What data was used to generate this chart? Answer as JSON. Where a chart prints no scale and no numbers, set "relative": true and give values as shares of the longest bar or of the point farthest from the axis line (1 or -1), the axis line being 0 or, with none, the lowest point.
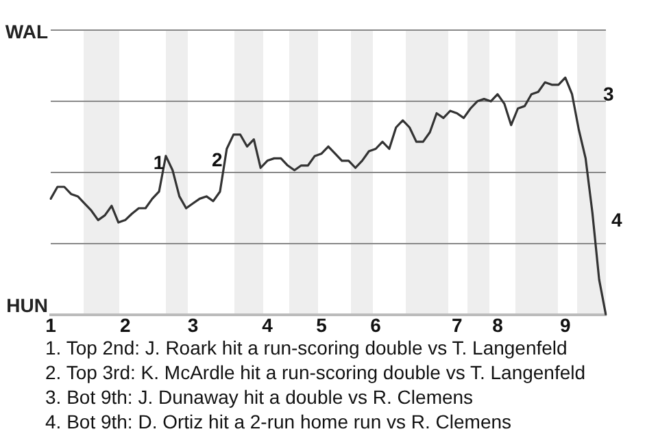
{
  "chart_data": {
    "type": "line",
    "marker": "none",
    "grid": "y",
    "legend": false,
    "line_style": "solid",
    "relative": true,
    "tick_labels": "x",
    "categories": [
      "1",
      null,
      null,
      null,
      null,
      null,
      null,
      null,
      null,
      null,
      null,
      "2",
      null,
      null,
      null,
      null,
      null,
      null,
      null,
      null,
      null,
      "3",
      null,
      null,
      null,
      null,
      null,
      null,
      null,
      null,
      null,
      null,
      "4",
      null,
      null,
      null,
      null,
      null,
      null,
      null,
      "5",
      null,
      null,
      null,
      null,
      null,
      null,
      null,
      "6",
      null,
      null,
      null,
      null,
      null,
      null,
      null,
      null,
      null,
      null,
      null,
      "7",
      null,
      null,
      null,
      null,
      null,
      "8",
      null,
      null,
      null,
      null,
      null,
      null,
      null,
      null,
      null,
      "9",
      null,
      null,
      null,
      null,
      null,
      null
    ],
    "series": [
      {
        "color": "#333333",
        "values": [
          0.49,
          0.54,
          0.54,
          0.51,
          0.5,
          0.47,
          0.44,
          0.4,
          0.42,
          0.46,
          0.39,
          0.4,
          0.427,
          0.45,
          0.45,
          0.49,
          0.52,
          0.67,
          0.61,
          0.5,
          0.45,
          0.47,
          0.49,
          0.5,
          0.48,
          0.52,
          0.7,
          0.76,
          0.76,
          0.71,
          0.74,
          0.62,
          0.65,
          0.66,
          0.66,
          0.63,
          0.61,
          0.63,
          0.63,
          0.67,
          0.68,
          0.71,
          0.68,
          0.65,
          0.65,
          0.62,
          0.65,
          0.69,
          0.7,
          0.73,
          0.7,
          0.79,
          0.82,
          0.79,
          0.73,
          0.73,
          0.77,
          0.85,
          0.83,
          0.86,
          0.85,
          0.83,
          0.87,
          0.9,
          0.91,
          0.9,
          0.93,
          0.89,
          0.8,
          0.87,
          0.88,
          0.93,
          0.94,
          0.98,
          0.97,
          0.97,
          1,
          0.93,
          0.78,
          0.66,
          0.432,
          0.15,
          0
        ]
      }
    ],
    "annotations": [
      "WAL",
      "HUN",
      "1",
      "2",
      "3",
      "4",
      "1. Top 2nd: J. Roark hit a run-scoring double vs T. Langenfeld",
      "2. Top 3rd: K. McArdle hit a run-scoring double vs T. Langenfeld",
      "3. Bot 9th: J. Dunaway hit a double vs R. Clemens",
      "4. Bot 9th: D. Ortiz hit a 2-run home run vs R. Clemens"
    ]
  }
}
